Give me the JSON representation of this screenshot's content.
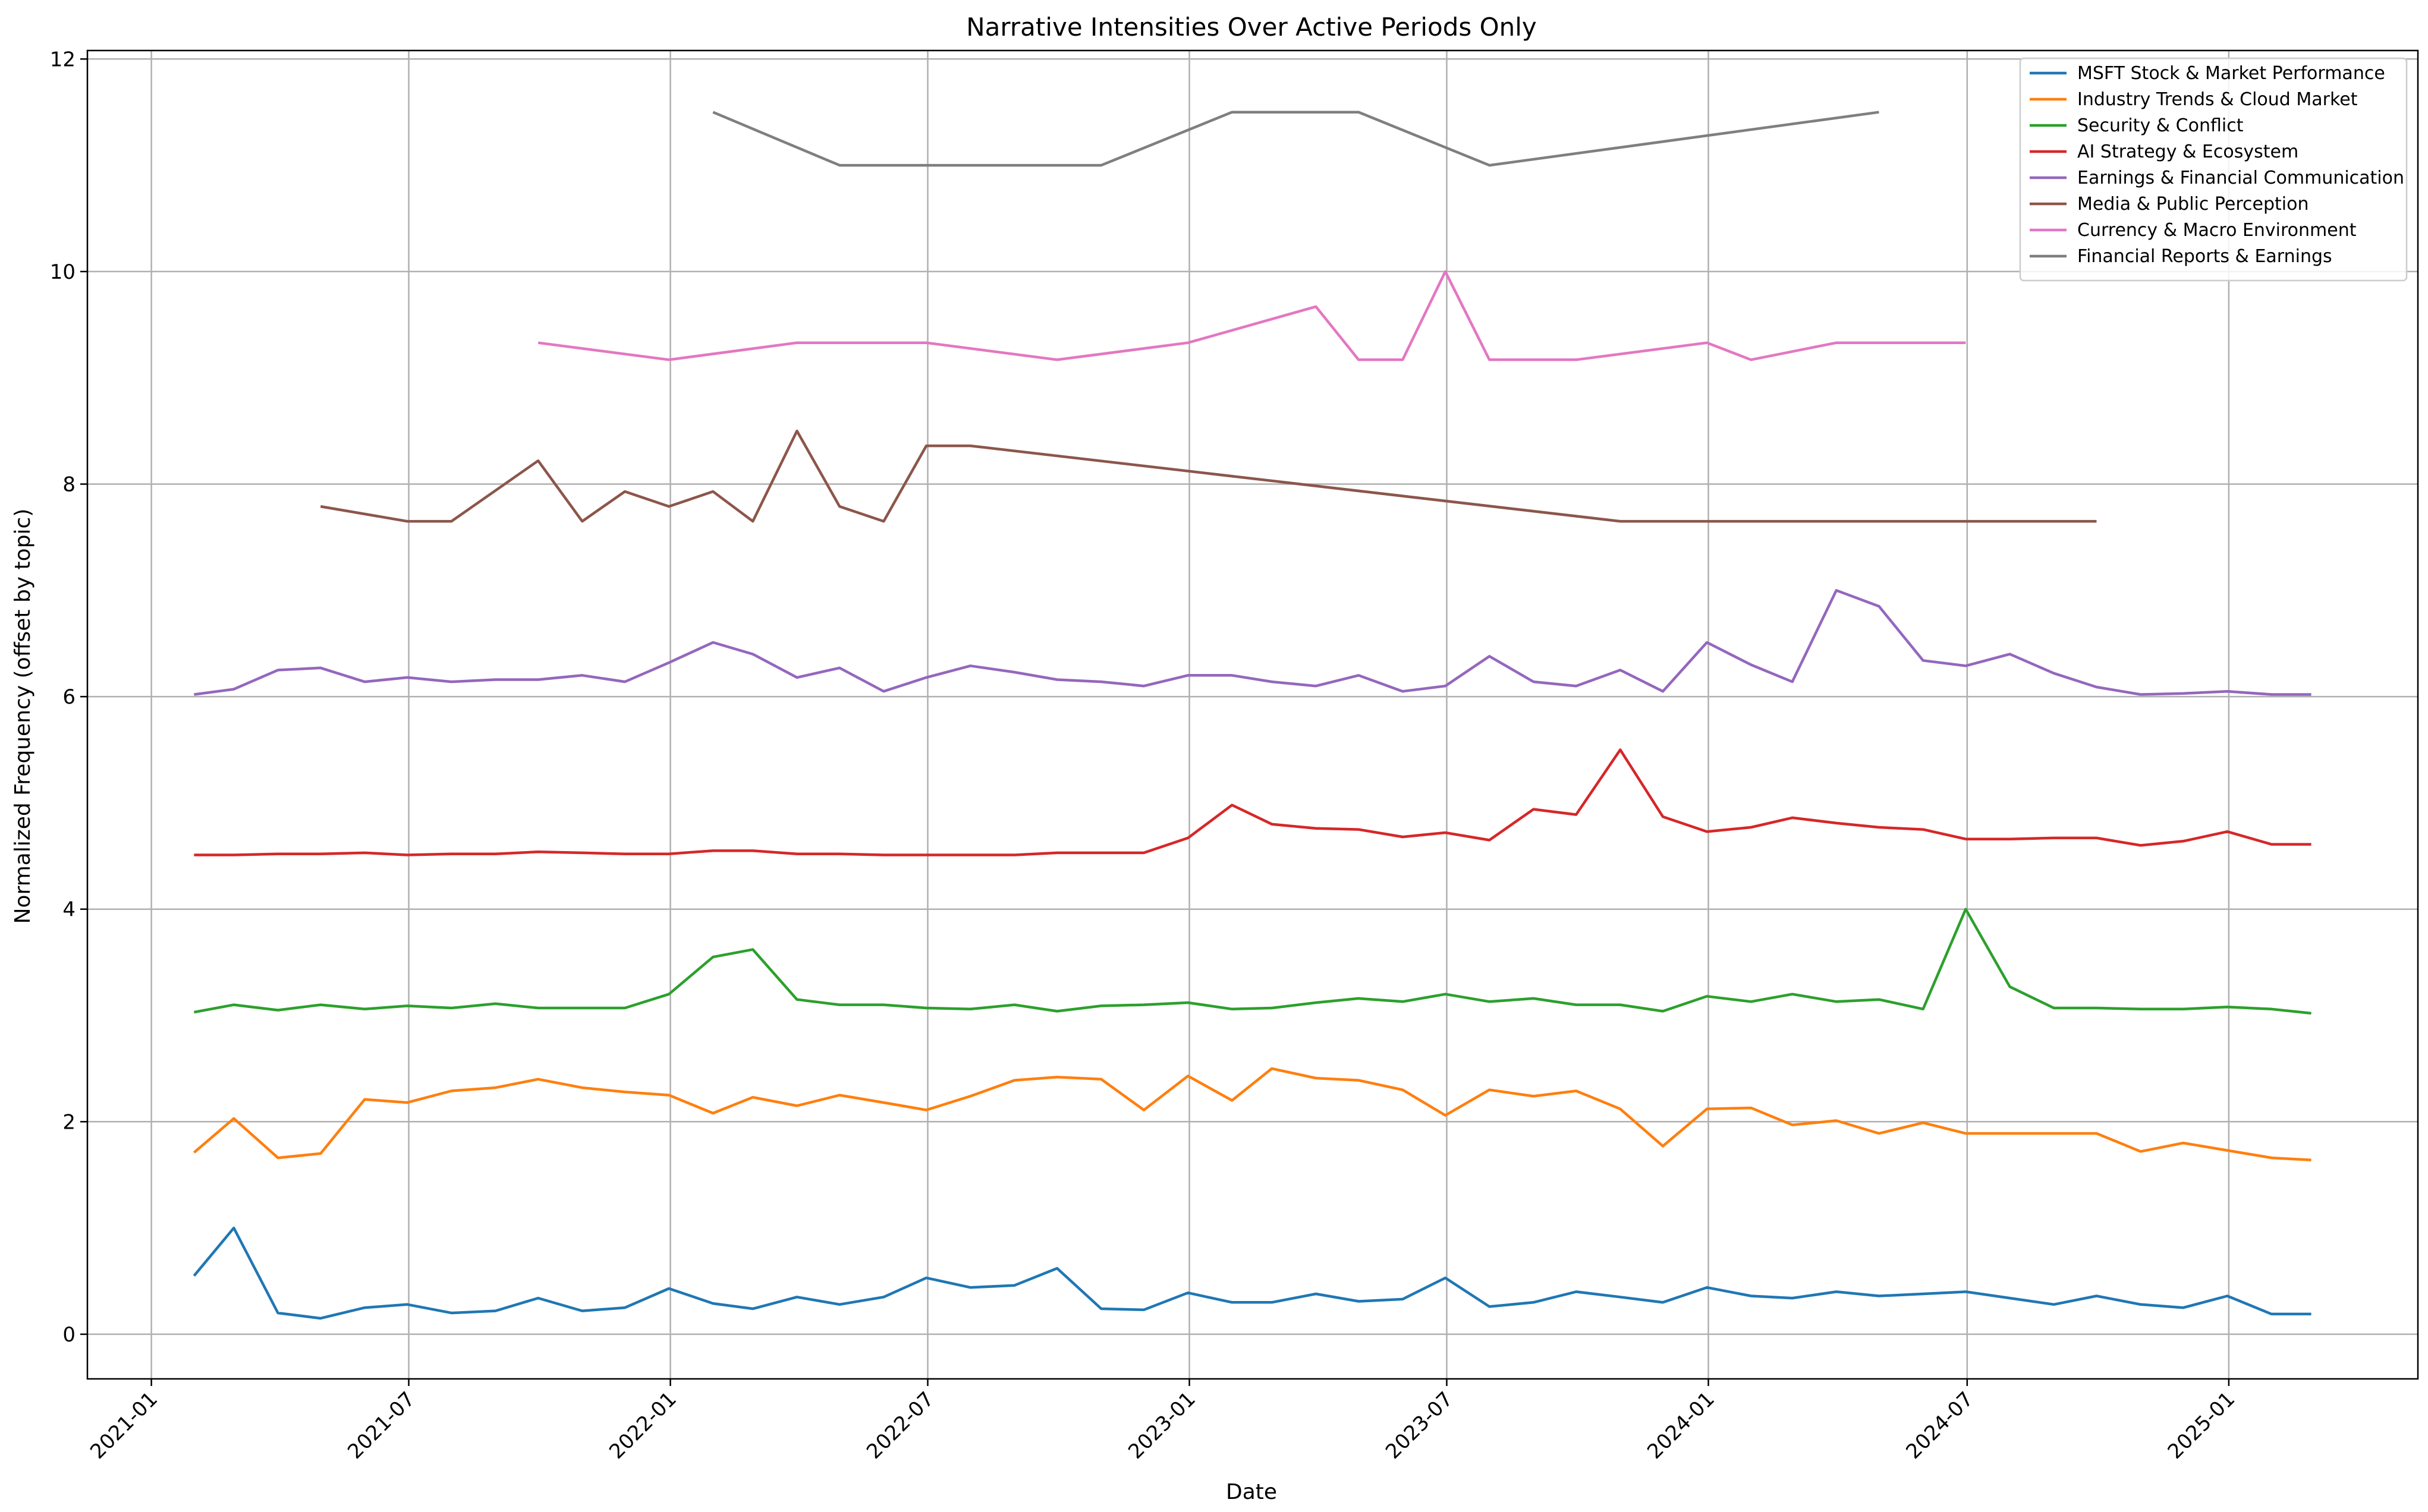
{
  "chart_data": {
    "type": "line",
    "title": "Narrative Intensities Over Active Periods Only",
    "xlabel": "Date",
    "ylabel": "Normalized Frequency (offset by topic)",
    "xlim": [
      "2020-11-17",
      "2025-05-14"
    ],
    "ylim": [
      -0.42,
      12.08
    ],
    "x_ticks": [
      "2021-01",
      "2021-07",
      "2022-01",
      "2022-07",
      "2023-01",
      "2023-07",
      "2024-01",
      "2024-07",
      "2025-01"
    ],
    "y_ticks": [
      0,
      2,
      4,
      6,
      8,
      10,
      12
    ],
    "grid": true,
    "legend_position": "upper right",
    "series": [
      {
        "name": "MSFT Stock & Market Performance",
        "color": "#1f77b4",
        "x": [
          "2021-01-31",
          "2021-02-28",
          "2021-03-31",
          "2021-04-30",
          "2021-05-31",
          "2021-06-30",
          "2021-07-31",
          "2021-08-31",
          "2021-09-30",
          "2021-10-31",
          "2021-11-30",
          "2021-12-31",
          "2022-01-31",
          "2022-02-28",
          "2022-03-31",
          "2022-04-30",
          "2022-05-31",
          "2022-06-30",
          "2022-07-31",
          "2022-08-31",
          "2022-09-30",
          "2022-10-31",
          "2022-11-30",
          "2022-12-31",
          "2023-01-31",
          "2023-02-28",
          "2023-03-31",
          "2023-04-30",
          "2023-05-31",
          "2023-06-30",
          "2023-07-31",
          "2023-08-31",
          "2023-09-30",
          "2023-10-31",
          "2023-11-30",
          "2023-12-31",
          "2024-01-31",
          "2024-02-29",
          "2024-03-31",
          "2024-04-30",
          "2024-05-31",
          "2024-06-30",
          "2024-07-31",
          "2024-08-31",
          "2024-09-30",
          "2024-10-31",
          "2024-11-30",
          "2024-12-31",
          "2025-01-31",
          "2025-02-28"
        ],
        "y": [
          0.55,
          1.0,
          0.2,
          0.15,
          0.25,
          0.28,
          0.2,
          0.22,
          0.34,
          0.22,
          0.25,
          0.43,
          0.29,
          0.24,
          0.35,
          0.28,
          0.35,
          0.53,
          0.44,
          0.46,
          0.62,
          0.24,
          0.23,
          0.39,
          0.3,
          0.3,
          0.38,
          0.31,
          0.33,
          0.53,
          0.26,
          0.3,
          0.4,
          0.35,
          0.3,
          0.44,
          0.36,
          0.34,
          0.4,
          0.36,
          0.38,
          0.4,
          0.34,
          0.28,
          0.36,
          0.28,
          0.25,
          0.36,
          0.19,
          0.19
        ]
      },
      {
        "name": "Industry Trends & Cloud Market",
        "color": "#ff7f0e",
        "x": [
          "2021-01-31",
          "2021-02-28",
          "2021-03-31",
          "2021-04-30",
          "2021-05-31",
          "2021-06-30",
          "2021-07-31",
          "2021-08-31",
          "2021-09-30",
          "2021-10-31",
          "2021-11-30",
          "2021-12-31",
          "2022-01-31",
          "2022-02-28",
          "2022-03-31",
          "2022-04-30",
          "2022-05-31",
          "2022-06-30",
          "2022-07-31",
          "2022-08-31",
          "2022-09-30",
          "2022-10-31",
          "2022-11-30",
          "2022-12-31",
          "2023-01-31",
          "2023-02-28",
          "2023-03-31",
          "2023-04-30",
          "2023-05-31",
          "2023-06-30",
          "2023-07-31",
          "2023-08-31",
          "2023-09-30",
          "2023-10-31",
          "2023-11-30",
          "2023-12-31",
          "2024-01-31",
          "2024-02-29",
          "2024-03-31",
          "2024-04-30",
          "2024-05-31",
          "2024-06-30",
          "2024-07-31",
          "2024-08-31",
          "2024-09-30",
          "2024-10-31",
          "2024-11-30",
          "2024-12-31",
          "2025-01-31",
          "2025-02-28"
        ],
        "y": [
          1.71,
          2.03,
          1.66,
          1.7,
          2.21,
          2.18,
          2.29,
          2.32,
          2.4,
          2.32,
          2.28,
          2.25,
          2.08,
          2.23,
          2.15,
          2.25,
          2.18,
          2.11,
          2.24,
          2.39,
          2.42,
          2.4,
          2.11,
          2.43,
          2.2,
          2.5,
          2.41,
          2.39,
          2.3,
          2.06,
          2.3,
          2.24,
          2.29,
          2.12,
          1.77,
          2.12,
          2.13,
          1.97,
          2.01,
          1.89,
          1.99,
          1.89,
          1.89,
          1.89,
          1.89,
          1.72,
          1.8,
          1.73,
          1.66,
          1.64
        ]
      },
      {
        "name": "Security & Conflict",
        "color": "#2ca02c",
        "x": [
          "2021-01-31",
          "2021-02-28",
          "2021-03-31",
          "2021-04-30",
          "2021-05-31",
          "2021-06-30",
          "2021-07-31",
          "2021-08-31",
          "2021-09-30",
          "2021-10-31",
          "2021-11-30",
          "2021-12-31",
          "2022-01-31",
          "2022-02-28",
          "2022-03-31",
          "2022-04-30",
          "2022-05-31",
          "2022-06-30",
          "2022-07-31",
          "2022-08-31",
          "2022-09-30",
          "2022-10-31",
          "2022-11-30",
          "2022-12-31",
          "2023-01-31",
          "2023-02-28",
          "2023-03-31",
          "2023-04-30",
          "2023-05-31",
          "2023-06-30",
          "2023-07-31",
          "2023-08-31",
          "2023-09-30",
          "2023-10-31",
          "2023-11-30",
          "2023-12-31",
          "2024-01-31",
          "2024-02-29",
          "2024-03-31",
          "2024-04-30",
          "2024-05-31",
          "2024-06-30",
          "2024-07-31",
          "2024-08-31",
          "2024-09-30",
          "2024-10-31",
          "2024-11-30",
          "2024-12-31",
          "2025-01-31",
          "2025-02-28"
        ],
        "y": [
          3.03,
          3.1,
          3.05,
          3.1,
          3.06,
          3.09,
          3.07,
          3.11,
          3.07,
          3.07,
          3.07,
          3.2,
          3.55,
          3.62,
          3.15,
          3.1,
          3.1,
          3.07,
          3.06,
          3.1,
          3.04,
          3.09,
          3.1,
          3.12,
          3.06,
          3.07,
          3.12,
          3.16,
          3.13,
          3.2,
          3.13,
          3.16,
          3.1,
          3.1,
          3.04,
          3.18,
          3.13,
          3.2,
          3.13,
          3.15,
          3.06,
          4.0,
          3.27,
          3.07,
          3.07,
          3.06,
          3.06,
          3.08,
          3.06,
          3.02
        ]
      },
      {
        "name": "AI Strategy & Ecosystem",
        "color": "#d62728",
        "x": [
          "2021-01-31",
          "2021-02-28",
          "2021-03-31",
          "2021-04-30",
          "2021-05-31",
          "2021-06-30",
          "2021-07-31",
          "2021-08-31",
          "2021-09-30",
          "2021-10-31",
          "2021-11-30",
          "2021-12-31",
          "2022-01-31",
          "2022-02-28",
          "2022-03-31",
          "2022-04-30",
          "2022-05-31",
          "2022-06-30",
          "2022-07-31",
          "2022-08-31",
          "2022-09-30",
          "2022-10-31",
          "2022-11-30",
          "2022-12-31",
          "2023-01-31",
          "2023-02-28",
          "2023-03-31",
          "2023-04-30",
          "2023-05-31",
          "2023-06-30",
          "2023-07-31",
          "2023-08-31",
          "2023-09-30",
          "2023-10-31",
          "2023-11-30",
          "2023-12-31",
          "2024-01-31",
          "2024-02-29",
          "2024-03-31",
          "2024-04-30",
          "2024-05-31",
          "2024-06-30",
          "2024-07-31",
          "2024-08-31",
          "2024-09-30",
          "2024-10-31",
          "2024-11-30",
          "2024-12-31",
          "2025-01-31",
          "2025-02-28"
        ],
        "y": [
          4.51,
          4.51,
          4.52,
          4.52,
          4.53,
          4.51,
          4.52,
          4.52,
          4.54,
          4.53,
          4.52,
          4.52,
          4.55,
          4.55,
          4.52,
          4.52,
          4.51,
          4.51,
          4.51,
          4.51,
          4.53,
          4.53,
          4.53,
          4.67,
          4.98,
          4.8,
          4.76,
          4.75,
          4.68,
          4.72,
          4.65,
          4.94,
          4.89,
          5.5,
          4.87,
          4.73,
          4.77,
          4.86,
          4.81,
          4.77,
          4.75,
          4.66,
          4.66,
          4.67,
          4.67,
          4.6,
          4.64,
          4.73,
          4.61,
          4.61
        ]
      },
      {
        "name": "Earnings & Financial Communication",
        "color": "#9467bd",
        "x": [
          "2021-01-31",
          "2021-02-28",
          "2021-03-31",
          "2021-04-30",
          "2021-05-31",
          "2021-06-30",
          "2021-07-31",
          "2021-08-31",
          "2021-09-30",
          "2021-10-31",
          "2021-11-30",
          "2021-12-31",
          "2022-01-31",
          "2022-02-28",
          "2022-03-31",
          "2022-04-30",
          "2022-05-31",
          "2022-06-30",
          "2022-07-31",
          "2022-08-31",
          "2022-09-30",
          "2022-10-31",
          "2022-11-30",
          "2022-12-31",
          "2023-01-31",
          "2023-02-28",
          "2023-03-31",
          "2023-04-30",
          "2023-05-31",
          "2023-06-30",
          "2023-07-31",
          "2023-08-31",
          "2023-09-30",
          "2023-10-31",
          "2023-11-30",
          "2023-12-31",
          "2024-01-31",
          "2024-02-29",
          "2024-03-31",
          "2024-04-30",
          "2024-05-31",
          "2024-06-30",
          "2024-07-31",
          "2024-08-31",
          "2024-09-30",
          "2024-10-31",
          "2024-11-30",
          "2024-12-31",
          "2025-01-31",
          "2025-02-28"
        ],
        "y": [
          6.02,
          6.07,
          6.25,
          6.27,
          6.14,
          6.18,
          6.14,
          6.16,
          6.16,
          6.2,
          6.14,
          6.32,
          6.51,
          6.4,
          6.18,
          6.27,
          6.05,
          6.18,
          6.29,
          6.23,
          6.16,
          6.14,
          6.1,
          6.2,
          6.2,
          6.14,
          6.1,
          6.2,
          6.05,
          6.1,
          6.38,
          6.14,
          6.1,
          6.25,
          6.05,
          6.51,
          6.3,
          6.14,
          7.0,
          6.85,
          6.34,
          6.29,
          6.4,
          6.22,
          6.09,
          6.02,
          6.03,
          6.05,
          6.02,
          6.02
        ]
      },
      {
        "name": "Media & Public Perception",
        "color": "#8c564b",
        "x": [
          "2021-04-30",
          "2021-06-30",
          "2021-07-31",
          "2021-09-30",
          "2021-10-31",
          "2021-11-30",
          "2021-12-31",
          "2022-01-31",
          "2022-02-28",
          "2022-03-31",
          "2022-04-30",
          "2022-05-31",
          "2022-06-30",
          "2022-07-31",
          "2023-10-31",
          "2024-09-30"
        ],
        "y": [
          7.79,
          7.65,
          7.65,
          8.22,
          7.65,
          7.93,
          7.79,
          7.93,
          7.65,
          8.5,
          7.79,
          7.65,
          8.36,
          8.36,
          7.65,
          7.65
        ]
      },
      {
        "name": "Currency & Macro Environment",
        "color": "#e377c2",
        "x": [
          "2021-09-30",
          "2021-12-31",
          "2022-03-31",
          "2022-06-30",
          "2022-09-30",
          "2022-12-31",
          "2023-03-31",
          "2023-04-30",
          "2023-05-31",
          "2023-06-30",
          "2023-07-31",
          "2023-09-30",
          "2023-12-31",
          "2024-01-31",
          "2024-03-31",
          "2024-06-30"
        ],
        "y": [
          9.33,
          9.17,
          9.33,
          9.33,
          9.17,
          9.33,
          9.67,
          9.17,
          9.17,
          10.0,
          9.17,
          9.17,
          9.33,
          9.17,
          9.33,
          9.33
        ]
      },
      {
        "name": "Financial Reports & Earnings",
        "color": "#7f7f7f",
        "x": [
          "2022-01-31",
          "2022-04-30",
          "2022-10-31",
          "2023-01-31",
          "2023-04-30",
          "2023-07-31",
          "2024-04-30"
        ],
        "y": [
          11.5,
          11.0,
          11.0,
          11.5,
          11.5,
          11.0,
          11.5
        ]
      }
    ]
  }
}
